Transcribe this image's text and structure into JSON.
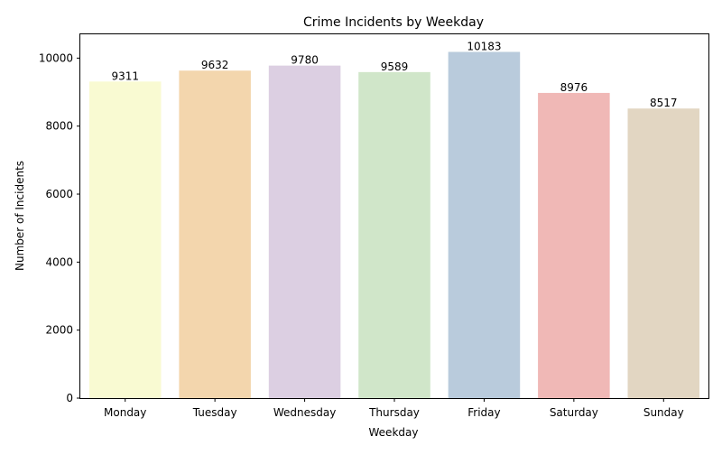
{
  "chart_data": {
    "type": "bar",
    "title": "Crime Incidents by Weekday",
    "xlabel": "Weekday",
    "ylabel": "Number of Incidents",
    "categories": [
      "Monday",
      "Tuesday",
      "Wednesday",
      "Thursday",
      "Friday",
      "Saturday",
      "Sunday"
    ],
    "values": [
      9311,
      9632,
      9780,
      9589,
      10183,
      8976,
      8517
    ],
    "data_labels": [
      "9311",
      "9632",
      "9780",
      "9589",
      "10183",
      "8976",
      "8517"
    ],
    "colors": [
      "#f9fad2",
      "#f3d6ad",
      "#dccfe2",
      "#d0e6c9",
      "#b9cbdc",
      "#f0b8b6",
      "#e2d6c2"
    ],
    "ylim": [
      0,
      10700
    ],
    "yticks": [
      0,
      2000,
      4000,
      6000,
      8000,
      10000
    ],
    "ytick_labels": [
      "0",
      "2000",
      "4000",
      "6000",
      "8000",
      "10000"
    ],
    "grid": false,
    "legend": "none"
  }
}
